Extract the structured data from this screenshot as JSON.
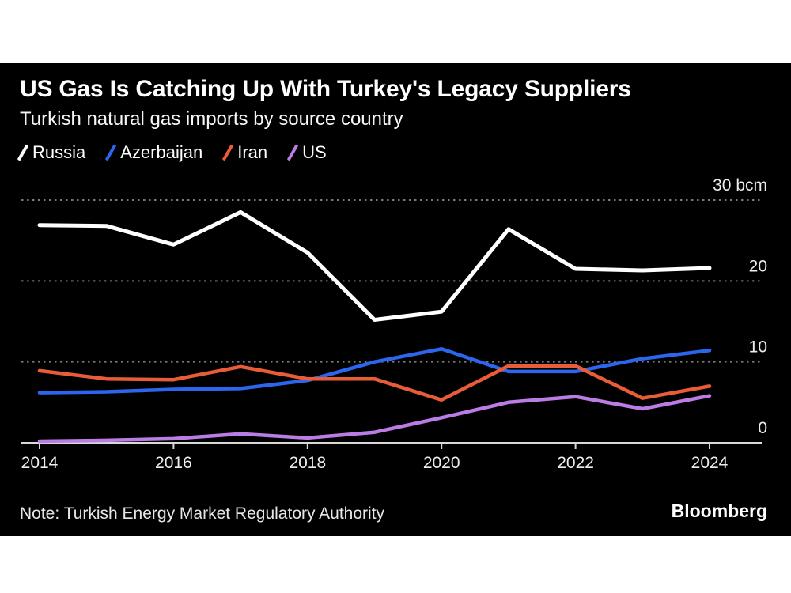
{
  "header": {
    "title": "US Gas Is Catching Up With Turkey's Legacy Suppliers",
    "subtitle": "Turkish natural gas imports by source country"
  },
  "chart_data": {
    "type": "line",
    "title": "US Gas Is Catching Up With Turkey's Legacy Suppliers",
    "subtitle": "Turkish natural gas imports by source country",
    "unit": "bcm",
    "x": [
      2014,
      2015,
      2016,
      2017,
      2018,
      2019,
      2020,
      2021,
      2022,
      2023,
      2024
    ],
    "series": [
      {
        "name": "Russia",
        "color": "#ffffff",
        "values": [
          26.9,
          26.8,
          24.5,
          28.5,
          23.5,
          15.2,
          16.2,
          26.4,
          21.5,
          21.3,
          21.6
        ]
      },
      {
        "name": "Azerbaijan",
        "color": "#2c66ee",
        "values": [
          6.2,
          6.3,
          6.6,
          6.7,
          7.7,
          10.0,
          11.6,
          8.8,
          8.8,
          10.4,
          11.4
        ]
      },
      {
        "name": "Iran",
        "color": "#e85c38",
        "values": [
          8.9,
          7.9,
          7.8,
          9.4,
          7.9,
          7.9,
          5.3,
          9.5,
          9.5,
          5.5,
          7.0
        ]
      },
      {
        "name": "US",
        "color": "#bb7ce6",
        "values": [
          0.2,
          0.3,
          0.5,
          1.1,
          0.6,
          1.3,
          3.1,
          5.0,
          5.7,
          4.2,
          5.8
        ]
      }
    ],
    "ylim": [
      0,
      30
    ],
    "yticks": [
      0,
      10,
      20,
      30
    ],
    "ytick_labels": [
      "0",
      "10",
      "20",
      "30 bcm"
    ],
    "xticks": [
      2014,
      2016,
      2018,
      2020,
      2022,
      2024
    ],
    "xtick_labels": [
      "2014",
      "2016",
      "2018",
      "2020",
      "2022",
      "2024"
    ],
    "legend_position": "top-left",
    "grid": "horizontal-dotted",
    "colors": {
      "background": "#000000",
      "gridline": "#7a7a7a",
      "axis": "#d9d9d9",
      "axis_label": "#ededed"
    }
  },
  "footer": {
    "note": "Note: Turkish Energy Market Regulatory Authority",
    "brand": "Bloomberg"
  }
}
